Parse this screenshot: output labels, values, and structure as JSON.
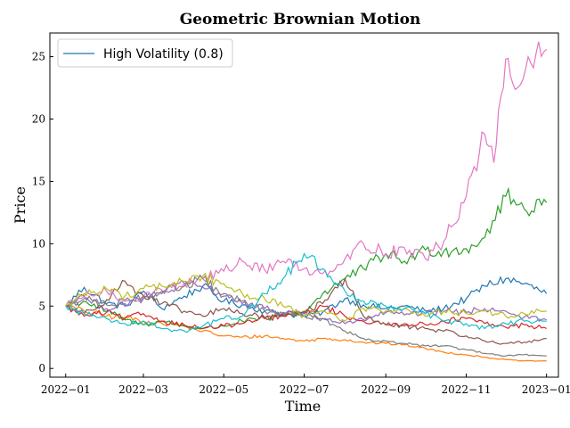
{
  "chart_data": {
    "type": "line",
    "title": "Geometric Brownian Motion",
    "xlabel": "Time",
    "ylabel": "Price",
    "xlim": [
      "2021-12-20",
      "2023-01-10"
    ],
    "ylim": [
      -0.7,
      26.9
    ],
    "grid": false,
    "legend": {
      "placement": "top-left",
      "entries": [
        {
          "label": "High Volatility (0.8)",
          "color": "#1f77b4"
        }
      ]
    },
    "x_ticks": [
      {
        "date": "2022-01-01",
        "label": "2022−01"
      },
      {
        "date": "2022-03-01",
        "label": "2022−03"
      },
      {
        "date": "2022-05-01",
        "label": "2022−05"
      },
      {
        "date": "2022-07-01",
        "label": "2022−07"
      },
      {
        "date": "2022-09-01",
        "label": "2022−09"
      },
      {
        "date": "2022-11-01",
        "label": "2022−11"
      },
      {
        "date": "2023-01-01",
        "label": "2023−01"
      }
    ],
    "y_ticks": [
      {
        "value": 0,
        "label": "0"
      },
      {
        "value": 5,
        "label": "5"
      },
      {
        "value": 10,
        "label": "10"
      },
      {
        "value": 15,
        "label": "15"
      },
      {
        "value": 20,
        "label": "20"
      },
      {
        "value": 25,
        "label": "25"
      }
    ],
    "series": [
      {
        "color": "#1f77b4",
        "points": [
          [
            "2022-01-01",
            5.0
          ],
          [
            "2022-01-15",
            6.5
          ],
          [
            "2022-02-01",
            5.2
          ],
          [
            "2022-02-15",
            5.0
          ],
          [
            "2022-03-01",
            6.2
          ],
          [
            "2022-03-15",
            4.8
          ],
          [
            "2022-04-01",
            5.8
          ],
          [
            "2022-04-15",
            6.6
          ],
          [
            "2022-05-01",
            5.4
          ],
          [
            "2022-05-15",
            5.1
          ],
          [
            "2022-06-01",
            4.6
          ],
          [
            "2022-06-15",
            4.4
          ],
          [
            "2022-07-01",
            4.2
          ],
          [
            "2022-07-15",
            4.5
          ],
          [
            "2022-08-01",
            5.6
          ],
          [
            "2022-08-15",
            5.1
          ],
          [
            "2022-09-01",
            4.8
          ],
          [
            "2022-09-15",
            5.0
          ],
          [
            "2022-10-01",
            4.6
          ],
          [
            "2022-10-15",
            4.8
          ],
          [
            "2022-11-01",
            5.6
          ],
          [
            "2022-11-15",
            6.6
          ],
          [
            "2022-12-01",
            7.2
          ],
          [
            "2022-12-15",
            6.8
          ],
          [
            "2023-01-01",
            6.0
          ]
        ]
      },
      {
        "color": "#ff7f0e",
        "points": [
          [
            "2022-01-01",
            5.0
          ],
          [
            "2022-01-15",
            4.6
          ],
          [
            "2022-02-01",
            4.2
          ],
          [
            "2022-02-15",
            4.1
          ],
          [
            "2022-03-01",
            3.8
          ],
          [
            "2022-03-15",
            3.6
          ],
          [
            "2022-04-01",
            3.4
          ],
          [
            "2022-04-15",
            3.0
          ],
          [
            "2022-05-01",
            2.6
          ],
          [
            "2022-05-15",
            2.5
          ],
          [
            "2022-06-01",
            2.6
          ],
          [
            "2022-06-15",
            2.4
          ],
          [
            "2022-07-01",
            2.2
          ],
          [
            "2022-07-15",
            2.4
          ],
          [
            "2022-08-01",
            2.3
          ],
          [
            "2022-08-15",
            2.1
          ],
          [
            "2022-09-01",
            2.0
          ],
          [
            "2022-09-15",
            1.9
          ],
          [
            "2022-10-01",
            1.6
          ],
          [
            "2022-10-15",
            1.3
          ],
          [
            "2022-11-01",
            1.1
          ],
          [
            "2022-11-15",
            0.9
          ],
          [
            "2022-12-01",
            0.7
          ],
          [
            "2022-12-15",
            0.6
          ],
          [
            "2023-01-01",
            0.6
          ]
        ]
      },
      {
        "color": "#2ca02c",
        "points": [
          [
            "2022-01-01",
            5.0
          ],
          [
            "2022-01-15",
            5.4
          ],
          [
            "2022-02-01",
            4.6
          ],
          [
            "2022-02-15",
            3.9
          ],
          [
            "2022-03-01",
            3.5
          ],
          [
            "2022-03-15",
            3.8
          ],
          [
            "2022-04-01",
            3.4
          ],
          [
            "2022-04-15",
            3.2
          ],
          [
            "2022-05-01",
            3.4
          ],
          [
            "2022-05-15",
            3.8
          ],
          [
            "2022-06-01",
            4.0
          ],
          [
            "2022-06-15",
            4.2
          ],
          [
            "2022-07-01",
            4.5
          ],
          [
            "2022-07-15",
            6.0
          ],
          [
            "2022-08-01",
            7.2
          ],
          [
            "2022-08-15",
            8.0
          ],
          [
            "2022-09-01",
            9.2
          ],
          [
            "2022-09-15",
            8.6
          ],
          [
            "2022-10-01",
            9.5
          ],
          [
            "2022-10-15",
            9.4
          ],
          [
            "2022-11-01",
            9.6
          ],
          [
            "2022-11-15",
            10.5
          ],
          [
            "2022-12-01",
            13.8
          ],
          [
            "2022-12-15",
            12.8
          ],
          [
            "2023-01-01",
            13.3
          ]
        ]
      },
      {
        "color": "#d62728",
        "points": [
          [
            "2022-01-01",
            5.0
          ],
          [
            "2022-01-15",
            4.2
          ],
          [
            "2022-02-01",
            4.5
          ],
          [
            "2022-02-15",
            4.0
          ],
          [
            "2022-03-01",
            4.4
          ],
          [
            "2022-03-15",
            3.8
          ],
          [
            "2022-04-01",
            3.5
          ],
          [
            "2022-04-15",
            3.2
          ],
          [
            "2022-05-01",
            3.4
          ],
          [
            "2022-05-15",
            3.6
          ],
          [
            "2022-06-01",
            4.0
          ],
          [
            "2022-06-15",
            4.2
          ],
          [
            "2022-07-01",
            4.4
          ],
          [
            "2022-07-15",
            5.0
          ],
          [
            "2022-08-01",
            4.2
          ],
          [
            "2022-08-15",
            3.8
          ],
          [
            "2022-09-01",
            3.5
          ],
          [
            "2022-09-15",
            3.6
          ],
          [
            "2022-10-01",
            3.5
          ],
          [
            "2022-10-15",
            3.8
          ],
          [
            "2022-11-01",
            4.0
          ],
          [
            "2022-11-15",
            3.6
          ],
          [
            "2022-12-01",
            3.3
          ],
          [
            "2022-12-15",
            3.5
          ],
          [
            "2023-01-01",
            3.2
          ]
        ]
      },
      {
        "color": "#9467bd",
        "points": [
          [
            "2022-01-01",
            5.0
          ],
          [
            "2022-01-15",
            5.6
          ],
          [
            "2022-02-01",
            4.8
          ],
          [
            "2022-02-15",
            5.2
          ],
          [
            "2022-03-01",
            5.6
          ],
          [
            "2022-03-15",
            6.0
          ],
          [
            "2022-04-01",
            6.8
          ],
          [
            "2022-04-15",
            6.5
          ],
          [
            "2022-05-01",
            6.0
          ],
          [
            "2022-05-15",
            5.2
          ],
          [
            "2022-06-01",
            4.8
          ],
          [
            "2022-06-15",
            4.5
          ],
          [
            "2022-07-01",
            4.4
          ],
          [
            "2022-07-15",
            4.0
          ],
          [
            "2022-08-01",
            3.6
          ],
          [
            "2022-08-15",
            3.9
          ],
          [
            "2022-09-01",
            4.5
          ],
          [
            "2022-09-15",
            4.3
          ],
          [
            "2022-10-01",
            4.4
          ],
          [
            "2022-10-15",
            4.6
          ],
          [
            "2022-11-01",
            4.5
          ],
          [
            "2022-11-15",
            4.8
          ],
          [
            "2022-12-01",
            4.6
          ],
          [
            "2022-12-15",
            4.1
          ],
          [
            "2023-01-01",
            3.9
          ]
        ]
      },
      {
        "color": "#8c564b",
        "points": [
          [
            "2022-01-01",
            5.0
          ],
          [
            "2022-01-15",
            4.4
          ],
          [
            "2022-02-01",
            5.5
          ],
          [
            "2022-02-15",
            7.0
          ],
          [
            "2022-03-01",
            5.8
          ],
          [
            "2022-03-15",
            5.2
          ],
          [
            "2022-04-01",
            4.6
          ],
          [
            "2022-04-15",
            4.2
          ],
          [
            "2022-05-01",
            4.8
          ],
          [
            "2022-05-15",
            4.4
          ],
          [
            "2022-06-01",
            4.1
          ],
          [
            "2022-06-15",
            4.3
          ],
          [
            "2022-07-01",
            4.6
          ],
          [
            "2022-07-15",
            5.2
          ],
          [
            "2022-08-01",
            7.2
          ],
          [
            "2022-08-15",
            4.2
          ],
          [
            "2022-09-01",
            3.5
          ],
          [
            "2022-09-15",
            3.4
          ],
          [
            "2022-10-01",
            3.2
          ],
          [
            "2022-10-15",
            3.0
          ],
          [
            "2022-11-01",
            2.6
          ],
          [
            "2022-11-15",
            2.2
          ],
          [
            "2022-12-01",
            2.0
          ],
          [
            "2022-12-15",
            2.1
          ],
          [
            "2023-01-01",
            2.4
          ]
        ]
      },
      {
        "color": "#e377c2",
        "points": [
          [
            "2022-01-01",
            5.0
          ],
          [
            "2022-01-15",
            5.8
          ],
          [
            "2022-02-01",
            6.2
          ],
          [
            "2022-02-15",
            5.4
          ],
          [
            "2022-03-01",
            5.8
          ],
          [
            "2022-03-15",
            6.3
          ],
          [
            "2022-04-01",
            6.8
          ],
          [
            "2022-04-15",
            7.2
          ],
          [
            "2022-05-01",
            7.8
          ],
          [
            "2022-05-15",
            8.6
          ],
          [
            "2022-06-01",
            7.9
          ],
          [
            "2022-06-15",
            8.6
          ],
          [
            "2022-07-01",
            8.0
          ],
          [
            "2022-07-15",
            7.6
          ],
          [
            "2022-08-01",
            8.8
          ],
          [
            "2022-08-15",
            10.0
          ],
          [
            "2022-09-01",
            9.2
          ],
          [
            "2022-09-15",
            9.7
          ],
          [
            "2022-10-01",
            8.8
          ],
          [
            "2022-10-15",
            10.2
          ],
          [
            "2022-11-01",
            13.8
          ],
          [
            "2022-11-15",
            18.8
          ],
          [
            "2022-11-22",
            16.5
          ],
          [
            "2022-12-01",
            24.8
          ],
          [
            "2022-12-10",
            22.5
          ],
          [
            "2022-12-20",
            24.5
          ],
          [
            "2023-01-01",
            25.6
          ]
        ]
      },
      {
        "color": "#7f7f7f",
        "points": [
          [
            "2022-01-01",
            5.0
          ],
          [
            "2022-01-15",
            5.8
          ],
          [
            "2022-02-01",
            5.1
          ],
          [
            "2022-02-15",
            5.5
          ],
          [
            "2022-03-01",
            5.8
          ],
          [
            "2022-03-15",
            6.2
          ],
          [
            "2022-04-01",
            6.6
          ],
          [
            "2022-04-15",
            7.2
          ],
          [
            "2022-05-01",
            5.8
          ],
          [
            "2022-05-15",
            5.4
          ],
          [
            "2022-06-01",
            4.6
          ],
          [
            "2022-06-15",
            4.4
          ],
          [
            "2022-07-01",
            4.2
          ],
          [
            "2022-07-15",
            4.0
          ],
          [
            "2022-08-01",
            3.0
          ],
          [
            "2022-08-15",
            2.4
          ],
          [
            "2022-09-01",
            2.2
          ],
          [
            "2022-09-15",
            2.0
          ],
          [
            "2022-10-01",
            1.8
          ],
          [
            "2022-10-15",
            1.8
          ],
          [
            "2022-11-01",
            1.5
          ],
          [
            "2022-11-15",
            1.2
          ],
          [
            "2022-12-01",
            1.0
          ],
          [
            "2022-12-15",
            1.1
          ],
          [
            "2023-01-01",
            1.0
          ]
        ]
      },
      {
        "color": "#bcbd22",
        "points": [
          [
            "2022-01-01",
            5.0
          ],
          [
            "2022-01-15",
            6.0
          ],
          [
            "2022-02-01",
            6.4
          ],
          [
            "2022-02-15",
            5.8
          ],
          [
            "2022-03-01",
            6.4
          ],
          [
            "2022-03-15",
            6.6
          ],
          [
            "2022-04-01",
            7.0
          ],
          [
            "2022-04-15",
            7.4
          ],
          [
            "2022-05-01",
            6.8
          ],
          [
            "2022-05-15",
            6.0
          ],
          [
            "2022-06-01",
            5.6
          ],
          [
            "2022-06-15",
            5.0
          ],
          [
            "2022-07-01",
            4.2
          ],
          [
            "2022-07-15",
            4.6
          ],
          [
            "2022-08-01",
            3.8
          ],
          [
            "2022-08-15",
            4.8
          ],
          [
            "2022-09-01",
            4.6
          ],
          [
            "2022-09-15",
            4.8
          ],
          [
            "2022-10-01",
            4.2
          ],
          [
            "2022-10-15",
            4.6
          ],
          [
            "2022-11-01",
            4.4
          ],
          [
            "2022-11-15",
            4.6
          ],
          [
            "2022-12-01",
            4.2
          ],
          [
            "2022-12-15",
            4.4
          ],
          [
            "2023-01-01",
            4.6
          ]
        ]
      },
      {
        "color": "#17becf",
        "points": [
          [
            "2022-01-01",
            5.0
          ],
          [
            "2022-01-15",
            4.4
          ],
          [
            "2022-02-01",
            4.0
          ],
          [
            "2022-02-15",
            3.6
          ],
          [
            "2022-03-01",
            3.8
          ],
          [
            "2022-03-15",
            3.2
          ],
          [
            "2022-04-01",
            3.0
          ],
          [
            "2022-04-15",
            3.4
          ],
          [
            "2022-05-01",
            4.0
          ],
          [
            "2022-05-15",
            4.2
          ],
          [
            "2022-06-01",
            6.0
          ],
          [
            "2022-06-15",
            7.2
          ],
          [
            "2022-07-01",
            9.2
          ],
          [
            "2022-07-15",
            8.0
          ],
          [
            "2022-08-01",
            6.2
          ],
          [
            "2022-08-15",
            5.4
          ],
          [
            "2022-09-01",
            5.0
          ],
          [
            "2022-09-15",
            4.8
          ],
          [
            "2022-10-01",
            4.4
          ],
          [
            "2022-10-15",
            3.8
          ],
          [
            "2022-11-01",
            3.6
          ],
          [
            "2022-11-15",
            3.2
          ],
          [
            "2022-12-01",
            3.6
          ],
          [
            "2022-12-15",
            3.8
          ],
          [
            "2023-01-01",
            3.8
          ]
        ]
      }
    ]
  }
}
